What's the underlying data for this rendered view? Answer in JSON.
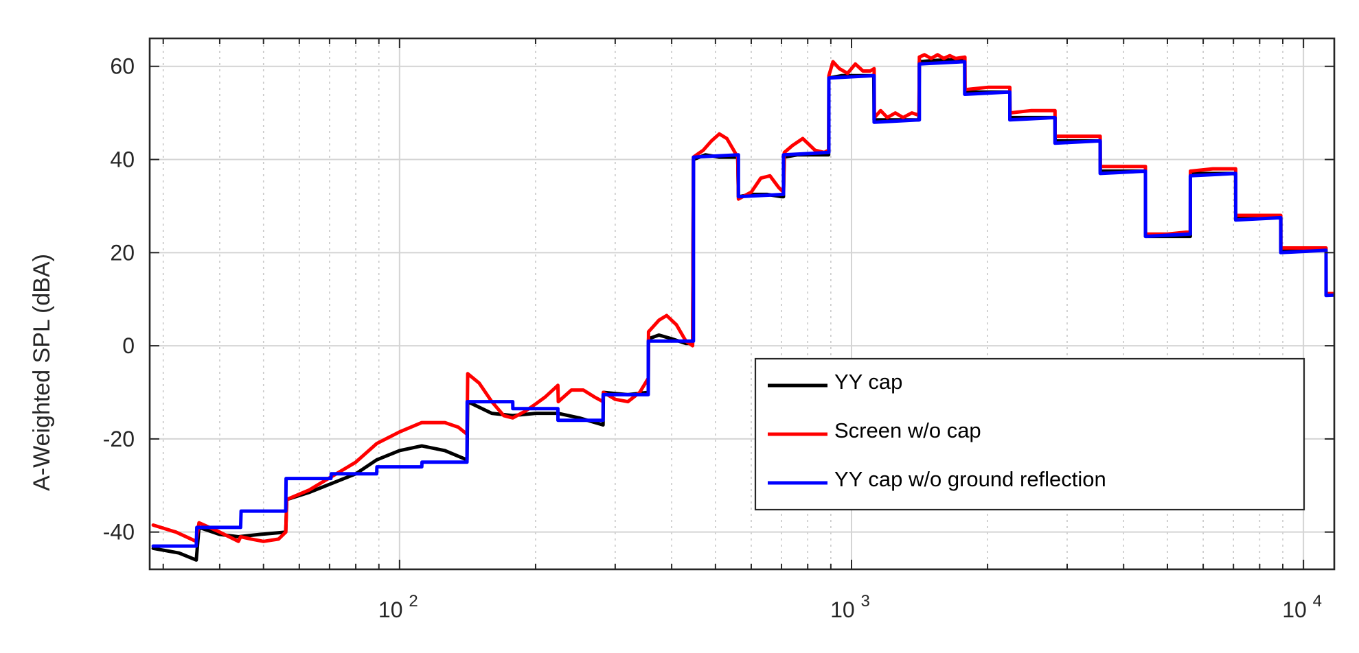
{
  "chart_data": {
    "type": "line",
    "title": "",
    "xlabel": "",
    "ylabel": "A-Weighted SPL (dBA)",
    "xscale": "log",
    "xlim": [
      28,
      11700
    ],
    "ylim": [
      -48,
      66
    ],
    "grid": true,
    "legend_placement": "lower-right",
    "x_ticks": [
      {
        "value": 100,
        "base": "10",
        "exp": "2"
      },
      {
        "value": 1000,
        "base": "10",
        "exp": "3"
      },
      {
        "value": 10000,
        "base": "10",
        "exp": "4"
      }
    ],
    "y_ticks": [
      {
        "value": -40,
        "label": "-40"
      },
      {
        "value": -20,
        "label": "-20"
      },
      {
        "value": 0,
        "label": "0"
      },
      {
        "value": 20,
        "label": "20"
      },
      {
        "value": 40,
        "label": "40"
      },
      {
        "value": 60,
        "label": "60"
      }
    ],
    "series": [
      {
        "name": "YY cap",
        "color": "#000000",
        "points": [
          [
            28.5,
            -43.5
          ],
          [
            32.5,
            -44.5
          ],
          [
            35.5,
            -46
          ],
          [
            36,
            -39
          ],
          [
            40,
            -40.5
          ],
          [
            44,
            -41
          ],
          [
            49,
            -40.5
          ],
          [
            56,
            -40
          ],
          [
            56.3,
            -33
          ],
          [
            63,
            -31.5
          ],
          [
            71,
            -29.5
          ],
          [
            80,
            -27.5
          ],
          [
            89,
            -24.5
          ],
          [
            100,
            -22.5
          ],
          [
            112,
            -21.5
          ],
          [
            126,
            -22.5
          ],
          [
            141,
            -24.5
          ],
          [
            141.5,
            -12
          ],
          [
            160,
            -14.5
          ],
          [
            178,
            -15
          ],
          [
            200,
            -14.5
          ],
          [
            224,
            -14.5
          ],
          [
            250,
            -15.5
          ],
          [
            282,
            -17
          ],
          [
            282.5,
            -10
          ],
          [
            320,
            -10.5
          ],
          [
            355,
            -10
          ],
          [
            355.5,
            1.5
          ],
          [
            375,
            2.3
          ],
          [
            400,
            1.5
          ],
          [
            430,
            0.5
          ],
          [
            445,
            0.5
          ],
          [
            447,
            40
          ],
          [
            475,
            41
          ],
          [
            510,
            40.5
          ],
          [
            560,
            40.5
          ],
          [
            562,
            32
          ],
          [
            600,
            32.5
          ],
          [
            650,
            32.5
          ],
          [
            700,
            32
          ],
          [
            707,
            32
          ],
          [
            710,
            40.5
          ],
          [
            760,
            41
          ],
          [
            820,
            41
          ],
          [
            890,
            41
          ],
          [
            891,
            57.5
          ],
          [
            950,
            58
          ],
          [
            1010,
            58
          ],
          [
            1120,
            58
          ],
          [
            1122,
            48.5
          ],
          [
            1200,
            48.5
          ],
          [
            1300,
            48.5
          ],
          [
            1410,
            48.5
          ],
          [
            1413,
            61
          ],
          [
            1550,
            61.3
          ],
          [
            1780,
            61.5
          ],
          [
            1782,
            54.5
          ],
          [
            2000,
            54.5
          ],
          [
            2240,
            54.5
          ],
          [
            2242,
            49
          ],
          [
            2500,
            49
          ],
          [
            2820,
            49
          ],
          [
            2822,
            44
          ],
          [
            3200,
            44
          ],
          [
            3550,
            44
          ],
          [
            3552,
            37.5
          ],
          [
            4000,
            37.5
          ],
          [
            4470,
            37.5
          ],
          [
            4472,
            23.5
          ],
          [
            5000,
            23.5
          ],
          [
            5620,
            23.5
          ],
          [
            5622,
            37
          ],
          [
            6300,
            37
          ],
          [
            7080,
            37
          ],
          [
            7082,
            27.5
          ],
          [
            8000,
            27.5
          ],
          [
            8910,
            27.5
          ],
          [
            8912,
            20.5
          ],
          [
            10000,
            20.5
          ],
          [
            11220,
            20.5
          ],
          [
            11222,
            11
          ],
          [
            12600,
            11
          ]
        ]
      },
      {
        "name": "Screen w/o cap",
        "color": "#ff0000",
        "points": [
          [
            28.5,
            -38.5
          ],
          [
            32,
            -40
          ],
          [
            35.5,
            -42
          ],
          [
            36,
            -38
          ],
          [
            40,
            -40
          ],
          [
            44,
            -42
          ],
          [
            44.5,
            -41
          ],
          [
            47,
            -41.5
          ],
          [
            50,
            -42
          ],
          [
            54,
            -41.5
          ],
          [
            56,
            -40
          ],
          [
            56.3,
            -33
          ],
          [
            63,
            -31
          ],
          [
            71,
            -28
          ],
          [
            80,
            -25
          ],
          [
            89,
            -21
          ],
          [
            100,
            -18.5
          ],
          [
            112,
            -16.5
          ],
          [
            126,
            -16.5
          ],
          [
            135,
            -17.5
          ],
          [
            141,
            -19
          ],
          [
            141.5,
            -6
          ],
          [
            150,
            -8
          ],
          [
            160,
            -12
          ],
          [
            170,
            -15
          ],
          [
            178,
            -15.5
          ],
          [
            190,
            -14
          ],
          [
            200,
            -12.5
          ],
          [
            210,
            -11
          ],
          [
            224,
            -8.5
          ],
          [
            224.5,
            -12
          ],
          [
            240,
            -9.5
          ],
          [
            255,
            -9.5
          ],
          [
            270,
            -11
          ],
          [
            282,
            -12
          ],
          [
            282.5,
            -10
          ],
          [
            300,
            -11.5
          ],
          [
            320,
            -12
          ],
          [
            340,
            -10
          ],
          [
            355,
            -7
          ],
          [
            355.5,
            3
          ],
          [
            375,
            5.5
          ],
          [
            390,
            6.5
          ],
          [
            410,
            4.5
          ],
          [
            430,
            1
          ],
          [
            445,
            0
          ],
          [
            447,
            40.5
          ],
          [
            470,
            42
          ],
          [
            490,
            44
          ],
          [
            510,
            45.5
          ],
          [
            530,
            44.5
          ],
          [
            560,
            40.5
          ],
          [
            562,
            31.5
          ],
          [
            600,
            33
          ],
          [
            630,
            36
          ],
          [
            660,
            36.5
          ],
          [
            690,
            34
          ],
          [
            707,
            33
          ],
          [
            710,
            41.5
          ],
          [
            740,
            43
          ],
          [
            780,
            44.5
          ],
          [
            800,
            43.5
          ],
          [
            830,
            42
          ],
          [
            870,
            41.5
          ],
          [
            890,
            42
          ],
          [
            891,
            58
          ],
          [
            910,
            61
          ],
          [
            940,
            59.5
          ],
          [
            980,
            58.5
          ],
          [
            1020,
            60.5
          ],
          [
            1060,
            59
          ],
          [
            1100,
            59
          ],
          [
            1122,
            59.5
          ],
          [
            1124,
            49
          ],
          [
            1160,
            50.5
          ],
          [
            1200,
            49
          ],
          [
            1250,
            50
          ],
          [
            1300,
            49
          ],
          [
            1360,
            50
          ],
          [
            1410,
            49.5
          ],
          [
            1413,
            62
          ],
          [
            1450,
            62.5
          ],
          [
            1500,
            61.7
          ],
          [
            1550,
            62.5
          ],
          [
            1600,
            61.7
          ],
          [
            1650,
            62.3
          ],
          [
            1700,
            61.7
          ],
          [
            1782,
            62
          ],
          [
            1784,
            55
          ],
          [
            2000,
            55.5
          ],
          [
            2240,
            55.5
          ],
          [
            2242,
            50
          ],
          [
            2500,
            50.5
          ],
          [
            2820,
            50.5
          ],
          [
            2822,
            45
          ],
          [
            3200,
            45
          ],
          [
            3550,
            45
          ],
          [
            3552,
            38.5
          ],
          [
            4000,
            38.5
          ],
          [
            4470,
            38.5
          ],
          [
            4472,
            24
          ],
          [
            5000,
            24
          ],
          [
            5620,
            24.5
          ],
          [
            5622,
            37.5
          ],
          [
            6300,
            38
          ],
          [
            7080,
            38
          ],
          [
            7082,
            28
          ],
          [
            8000,
            28
          ],
          [
            8910,
            28
          ],
          [
            8912,
            21
          ],
          [
            10000,
            21
          ],
          [
            11220,
            21
          ],
          [
            11222,
            11.3
          ],
          [
            12600,
            11
          ]
        ]
      },
      {
        "name": "YY cap w/o ground reflection",
        "color": "#0000ff",
        "points": [
          [
            28.5,
            -43
          ],
          [
            35.5,
            -43
          ],
          [
            35.6,
            -39
          ],
          [
            44.5,
            -39
          ],
          [
            44.6,
            -35.5
          ],
          [
            56,
            -35.5
          ],
          [
            56.1,
            -28.5
          ],
          [
            70.5,
            -28.5
          ],
          [
            70.6,
            -27.5
          ],
          [
            89,
            -27.5
          ],
          [
            89.1,
            -26
          ],
          [
            112,
            -26
          ],
          [
            112.1,
            -25
          ],
          [
            141,
            -25
          ],
          [
            141.1,
            -12
          ],
          [
            178,
            -12
          ],
          [
            178.1,
            -13.5
          ],
          [
            224,
            -13.5
          ],
          [
            224.1,
            -16
          ],
          [
            282,
            -16
          ],
          [
            282.1,
            -10.5
          ],
          [
            355,
            -10.5
          ],
          [
            355.1,
            1
          ],
          [
            447,
            1
          ],
          [
            447.1,
            40.5
          ],
          [
            562,
            41
          ],
          [
            562.1,
            32
          ],
          [
            707,
            32.5
          ],
          [
            707.1,
            41
          ],
          [
            891,
            41.5
          ],
          [
            891.1,
            57.5
          ],
          [
            1122,
            58
          ],
          [
            1122.1,
            48
          ],
          [
            1413,
            48.5
          ],
          [
            1413.1,
            60.5
          ],
          [
            1780,
            61
          ],
          [
            1780.1,
            54
          ],
          [
            2240,
            54.5
          ],
          [
            2240.1,
            48.5
          ],
          [
            2820,
            49
          ],
          [
            2820.1,
            43.5
          ],
          [
            3550,
            44
          ],
          [
            3550.1,
            37
          ],
          [
            4470,
            37.5
          ],
          [
            4470.1,
            23.5
          ],
          [
            5620,
            24
          ],
          [
            5620.1,
            36.5
          ],
          [
            7080,
            37
          ],
          [
            7080.1,
            27
          ],
          [
            8910,
            27.5
          ],
          [
            8910.1,
            20
          ],
          [
            11220,
            20.5
          ],
          [
            11220.1,
            10.8
          ],
          [
            12600,
            11
          ]
        ]
      }
    ]
  }
}
